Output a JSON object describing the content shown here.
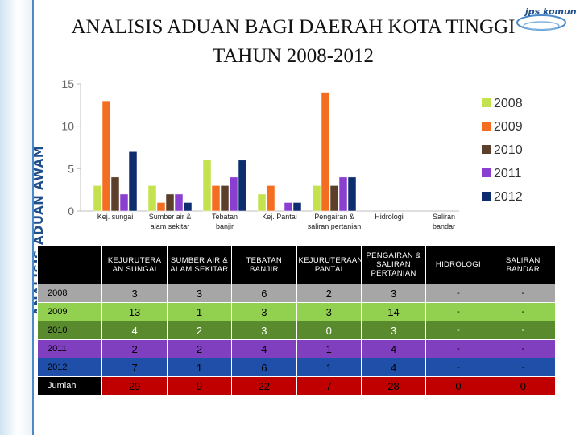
{
  "side_label": "ANALISIS ADUAN AWAM",
  "title_line1": "ANALISIS ADUAN BAGI DAERAH KOTA TINGGI",
  "title_line2": "TAHUN 2008-2012",
  "logo_text": "jps komun",
  "chart_data": {
    "type": "bar",
    "categories": [
      "Kej. sungai",
      "Sumber air & alam sekitar",
      "Tebatan banjir",
      "Kej. Pantai",
      "Pengairan & saliran pertanian",
      "Hidrologi",
      "Saliran bandar"
    ],
    "category_lines": [
      [
        "Kej. sungai"
      ],
      [
        "Sumber air &",
        "alam sekitar"
      ],
      [
        "Tebatan",
        "banjir"
      ],
      [
        "Kej. Pantai"
      ],
      [
        "Pengairan &",
        "saliran pertanian"
      ],
      [
        "Hidrologi"
      ],
      [
        "Saliran",
        "bandar"
      ]
    ],
    "series": [
      {
        "name": "2008",
        "color": "#c3e24d",
        "values": [
          3,
          3,
          6,
          2,
          3,
          0,
          0
        ]
      },
      {
        "name": "2009",
        "color": "#f36e21",
        "values": [
          13,
          1,
          3,
          3,
          14,
          0,
          0
        ]
      },
      {
        "name": "2010",
        "color": "#5b3f2a",
        "values": [
          4,
          2,
          3,
          0,
          3,
          0,
          0
        ]
      },
      {
        "name": "2011",
        "color": "#8b3fd1",
        "values": [
          2,
          2,
          4,
          1,
          4,
          0,
          0
        ]
      },
      {
        "name": "2012",
        "color": "#0d2d6e",
        "values": [
          7,
          1,
          6,
          1,
          4,
          0,
          0
        ]
      }
    ],
    "ylim": [
      0,
      15
    ],
    "yticks": [
      0,
      5,
      10,
      15
    ],
    "grid": false,
    "legend_position": "right"
  },
  "table": {
    "headers": [
      "KEJURUTERA AN SUNGAI",
      "SUMBER AIR & ALAM SEKITAR",
      "TEBATAN BANJIR",
      "KEJURUTERAAN PANTAI",
      "PENGAIRAN & SALIRAN PERTANIAN",
      "HIDROLOGI",
      "SALIRAN BANDAR"
    ],
    "rows": [
      {
        "label": "2008",
        "values": [
          "3",
          "3",
          "6",
          "2",
          "3",
          "-",
          "-"
        ]
      },
      {
        "label": "2009",
        "values": [
          "13",
          "1",
          "3",
          "3",
          "14",
          "-",
          "-"
        ]
      },
      {
        "label": "2010",
        "values": [
          "4",
          "2",
          "3",
          "0",
          "3",
          "-",
          "-"
        ]
      },
      {
        "label": "2011",
        "values": [
          "2",
          "2",
          "4",
          "1",
          "4",
          "-",
          "-"
        ]
      },
      {
        "label": "2012",
        "values": [
          "7",
          "1",
          "6",
          "1",
          "4",
          "-",
          "-"
        ]
      },
      {
        "label": "Jumlah",
        "values": [
          "29",
          "9",
          "22",
          "7",
          "28",
          "0",
          "0"
        ]
      }
    ]
  }
}
